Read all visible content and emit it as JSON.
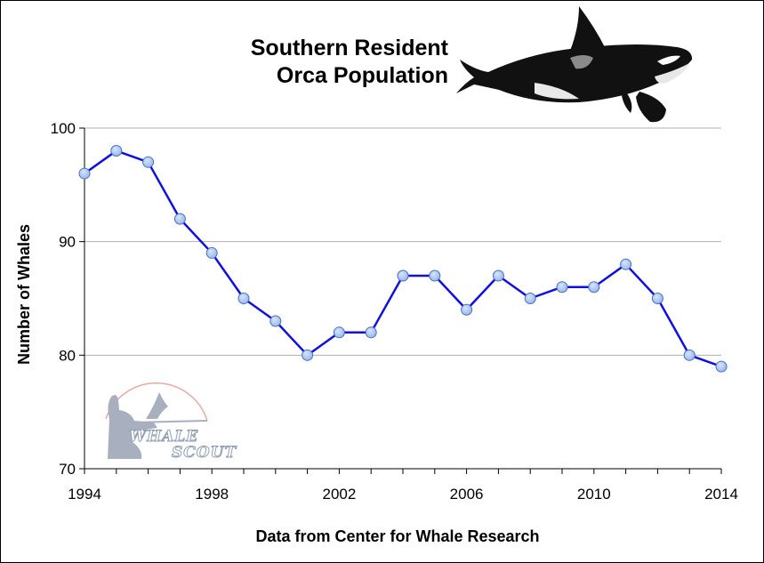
{
  "chart_data": {
    "type": "line",
    "title_lines": [
      "Southern Resident",
      "Orca Population"
    ],
    "xlabel": "Data from Center for Whale Research",
    "ylabel": "Number of Whales",
    "x": [
      1994,
      1995,
      1996,
      1997,
      1998,
      1999,
      2000,
      2001,
      2002,
      2003,
      2004,
      2005,
      2006,
      2007,
      2008,
      2009,
      2010,
      2011,
      2012,
      2013,
      2014
    ],
    "values": [
      96,
      98,
      97,
      92,
      89,
      85,
      83,
      80,
      82,
      82,
      87,
      87,
      84,
      87,
      85,
      86,
      86,
      88,
      85,
      80,
      79
    ],
    "xlim": [
      1994,
      2014
    ],
    "ylim": [
      70,
      100
    ],
    "x_ticks": [
      1994,
      1998,
      2002,
      2006,
      2010,
      2014
    ],
    "y_ticks": [
      70,
      80,
      90,
      100
    ],
    "gridlines": "horizontal",
    "line_color": "#1010e0",
    "marker_color": "#9ab8ec"
  },
  "logo": {
    "line1": "WHALE",
    "line2": "SCOUT"
  }
}
